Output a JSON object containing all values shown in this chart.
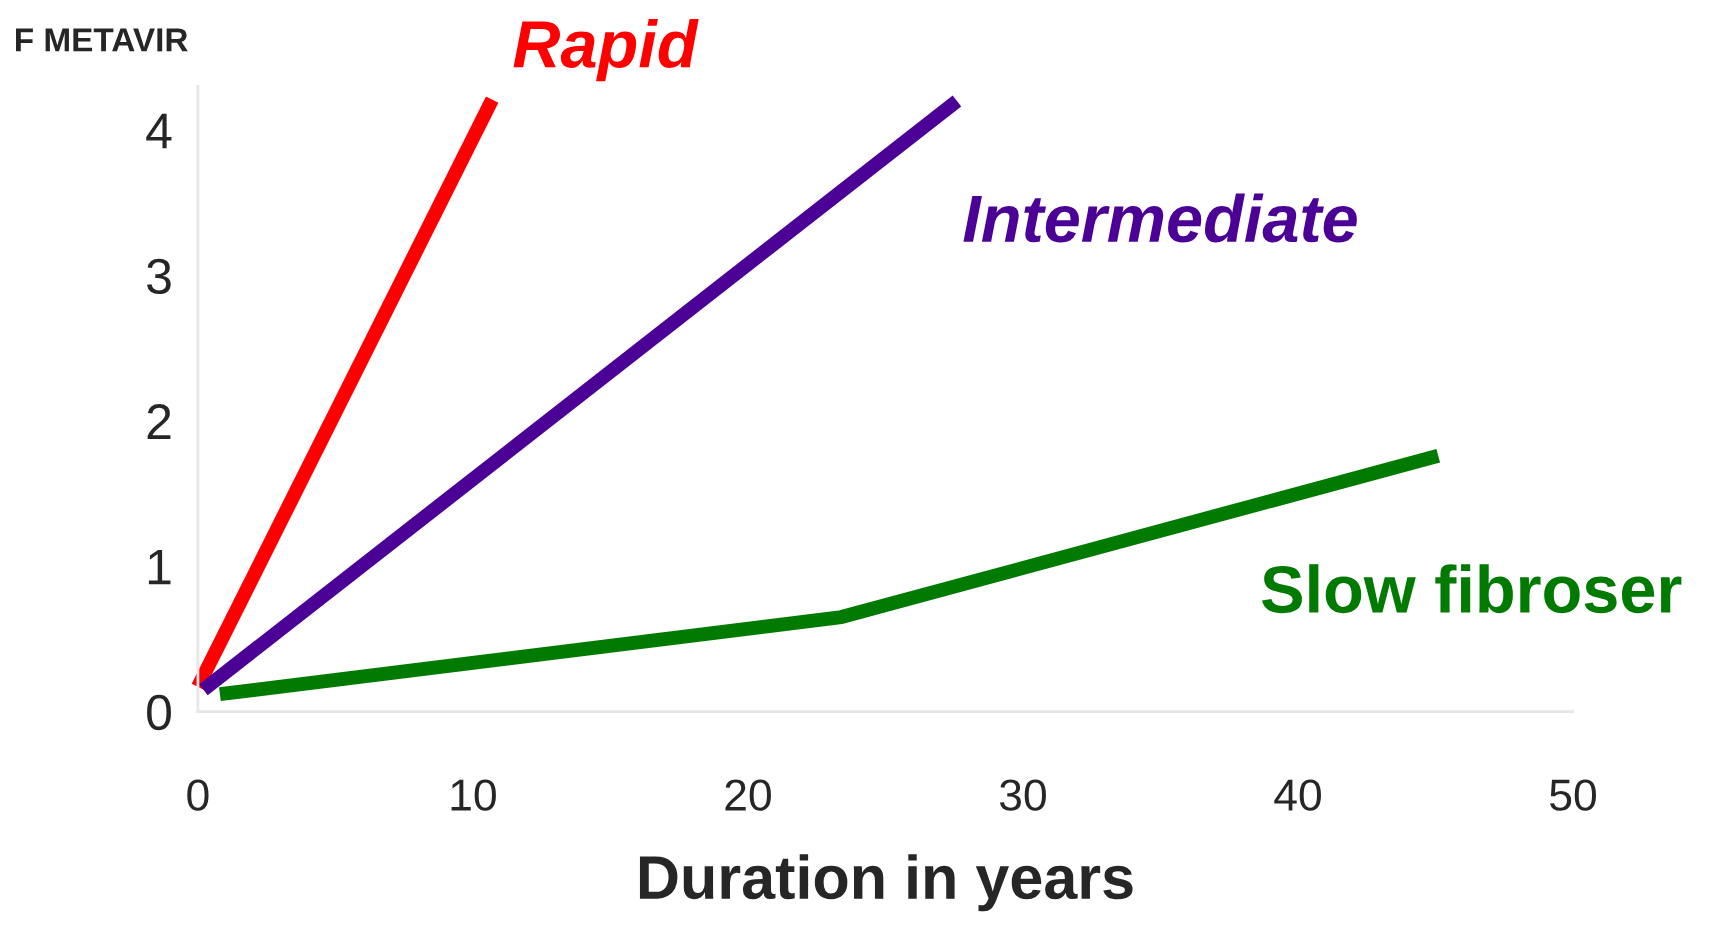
{
  "chart_data": {
    "type": "line",
    "ylabel": "F METAVIR",
    "xlabel": "Duration in years",
    "xlim": [
      0,
      50
    ],
    "xticks": [
      0,
      10,
      20,
      30,
      40,
      50
    ],
    "ylim": [
      0,
      4.3
    ],
    "yticks": [
      0,
      1,
      2,
      3,
      4
    ],
    "grid": false,
    "legend": false,
    "series": [
      {
        "name": "Rapid",
        "color": "#ff0000",
        "x": [
          0,
          10.7
        ],
        "values": [
          0.17,
          4.21
        ]
      },
      {
        "name": "Intermediate",
        "color": "#4b0096",
        "x": [
          0.2,
          27.6
        ],
        "values": [
          0.15,
          4.2
        ]
      },
      {
        "name": "Slow fibroser",
        "color": "#007a00",
        "x": [
          0.8,
          23.4,
          45.1
        ],
        "values": [
          0.12,
          0.65,
          1.76
        ]
      }
    ]
  }
}
